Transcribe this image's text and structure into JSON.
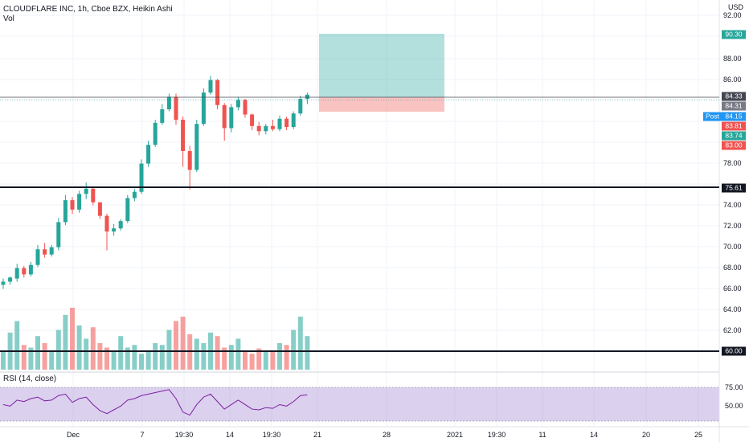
{
  "legend": {
    "symbol": "CLOUDFLARE INC, 1h, Cboe BZX, Heikin Ashi",
    "volume_label": "Vol"
  },
  "currency": "USD",
  "price_axis_ticks": [
    "92.00",
    "88.00",
    "86.00",
    "78.00",
    "74.00",
    "72.00",
    "70.00",
    "68.00",
    "66.00",
    "64.00",
    "62.00"
  ],
  "price_tags": [
    {
      "label": "90.30",
      "color": "#26a69a"
    },
    {
      "label": "84.33",
      "color": "#434651"
    },
    {
      "label": "84.31",
      "color": "#787b86"
    },
    {
      "label": "84.15",
      "color": "#2196f3"
    },
    {
      "label": "83.81",
      "color": "#ef5350"
    },
    {
      "label": "83.74",
      "color": "#26a69a"
    },
    {
      "label": "83.00",
      "color": "#ef5350"
    },
    {
      "label": "75.61",
      "color": "#131722"
    },
    {
      "label": "60.00",
      "color": "#131722"
    }
  ],
  "post_label": "Post",
  "time_axis_ticks": [
    "Dec",
    "7",
    "19:30",
    "14",
    "19:30",
    "21",
    "28",
    "2021",
    "19:30",
    "11",
    "14",
    "20",
    "25"
  ],
  "rsi": {
    "label": "RSI (14, close)",
    "ticks": [
      "75.00",
      "50.00"
    ],
    "band_color": "#7e57c2"
  },
  "colors": {
    "up": "#26a69a",
    "down": "#ef5350",
    "profit_zone": "#26a69a",
    "loss_zone": "#ef5350",
    "rsi_line": "#7b1fa2"
  },
  "chart_data": {
    "type": "candlestick",
    "price_range": [
      60,
      92
    ],
    "horizontal_levels": [
      75.61,
      60.0
    ],
    "position": {
      "target": 90.3,
      "entry": 84.33,
      "stop": 83.0
    },
    "rsi_range": [
      0,
      100
    ],
    "rsi_band": [
      30,
      75
    ],
    "candles": [
      [
        66.2,
        66.8,
        65.8,
        66.5
      ],
      [
        66.5,
        67.0,
        66.2,
        66.9
      ],
      [
        66.8,
        68.2,
        66.5,
        67.8
      ],
      [
        67.8,
        68.0,
        66.9,
        67.2
      ],
      [
        67.2,
        68.4,
        67.0,
        68.1
      ],
      [
        68.1,
        70.0,
        67.9,
        69.6
      ],
      [
        69.6,
        70.2,
        68.8,
        69.1
      ],
      [
        69.1,
        70.0,
        68.9,
        69.8
      ],
      [
        69.8,
        72.6,
        69.5,
        72.2
      ],
      [
        72.2,
        74.8,
        71.9,
        74.3
      ],
      [
        74.3,
        74.6,
        73.0,
        73.4
      ],
      [
        73.4,
        75.2,
        73.1,
        74.9
      ],
      [
        74.9,
        76.0,
        74.4,
        75.4
      ],
      [
        75.4,
        75.6,
        73.8,
        74.1
      ],
      [
        74.1,
        73.9,
        72.5,
        72.8
      ],
      [
        72.8,
        73.0,
        69.5,
        71.3
      ],
      [
        71.3,
        72.0,
        70.9,
        71.6
      ],
      [
        71.6,
        72.5,
        71.4,
        72.3
      ],
      [
        72.3,
        74.8,
        72.1,
        74.5
      ],
      [
        74.5,
        75.4,
        74.2,
        75.1
      ],
      [
        75.1,
        78.2,
        74.9,
        77.8
      ],
      [
        77.8,
        80.0,
        77.5,
        79.6
      ],
      [
        79.6,
        82.0,
        79.4,
        81.7
      ],
      [
        81.7,
        83.5,
        81.5,
        83.0
      ],
      [
        83.0,
        84.5,
        82.8,
        84.2
      ],
      [
        84.2,
        84.5,
        81.5,
        82.0
      ],
      [
        82.0,
        82.3,
        77.5,
        79.0
      ],
      [
        79.0,
        79.5,
        75.3,
        77.2
      ],
      [
        77.2,
        82.0,
        77.0,
        81.6
      ],
      [
        81.6,
        85.0,
        81.4,
        84.6
      ],
      [
        84.6,
        86.2,
        84.4,
        85.8
      ],
      [
        85.8,
        85.9,
        83.0,
        83.4
      ],
      [
        83.4,
        83.6,
        80.0,
        81.2
      ],
      [
        81.2,
        83.5,
        80.8,
        83.2
      ],
      [
        83.2,
        84.2,
        82.9,
        83.9
      ],
      [
        83.9,
        84.0,
        82.2,
        82.5
      ],
      [
        82.5,
        82.6,
        81.0,
        81.4
      ],
      [
        81.4,
        81.8,
        80.5,
        80.9
      ],
      [
        80.9,
        81.6,
        80.6,
        81.4
      ],
      [
        81.4,
        82.0,
        80.9,
        81.1
      ],
      [
        81.1,
        82.4,
        80.9,
        82.1
      ],
      [
        82.1,
        82.3,
        81.0,
        81.3
      ],
      [
        81.3,
        82.8,
        81.1,
        82.6
      ],
      [
        82.6,
        84.3,
        82.4,
        84.0
      ],
      [
        84.0,
        84.6,
        83.5,
        84.4
      ]
    ],
    "volume": [
      20,
      42,
      55,
      28,
      25,
      38,
      30,
      22,
      45,
      62,
      70,
      50,
      35,
      48,
      30,
      25,
      20,
      38,
      25,
      28,
      18,
      22,
      30,
      28,
      45,
      55,
      60,
      40,
      35,
      30,
      42,
      38,
      25,
      28,
      35,
      22,
      18,
      24,
      20,
      22,
      30,
      28,
      45,
      60,
      38
    ],
    "rsi_values": [
      52,
      50,
      58,
      56,
      60,
      62,
      57,
      58,
      64,
      66,
      55,
      60,
      62,
      52,
      44,
      40,
      45,
      50,
      58,
      60,
      64,
      66,
      68,
      70,
      72,
      60,
      42,
      38,
      52,
      62,
      66,
      56,
      46,
      52,
      58,
      52,
      46,
      45,
      48,
      47,
      52,
      50,
      56,
      64,
      65
    ]
  }
}
